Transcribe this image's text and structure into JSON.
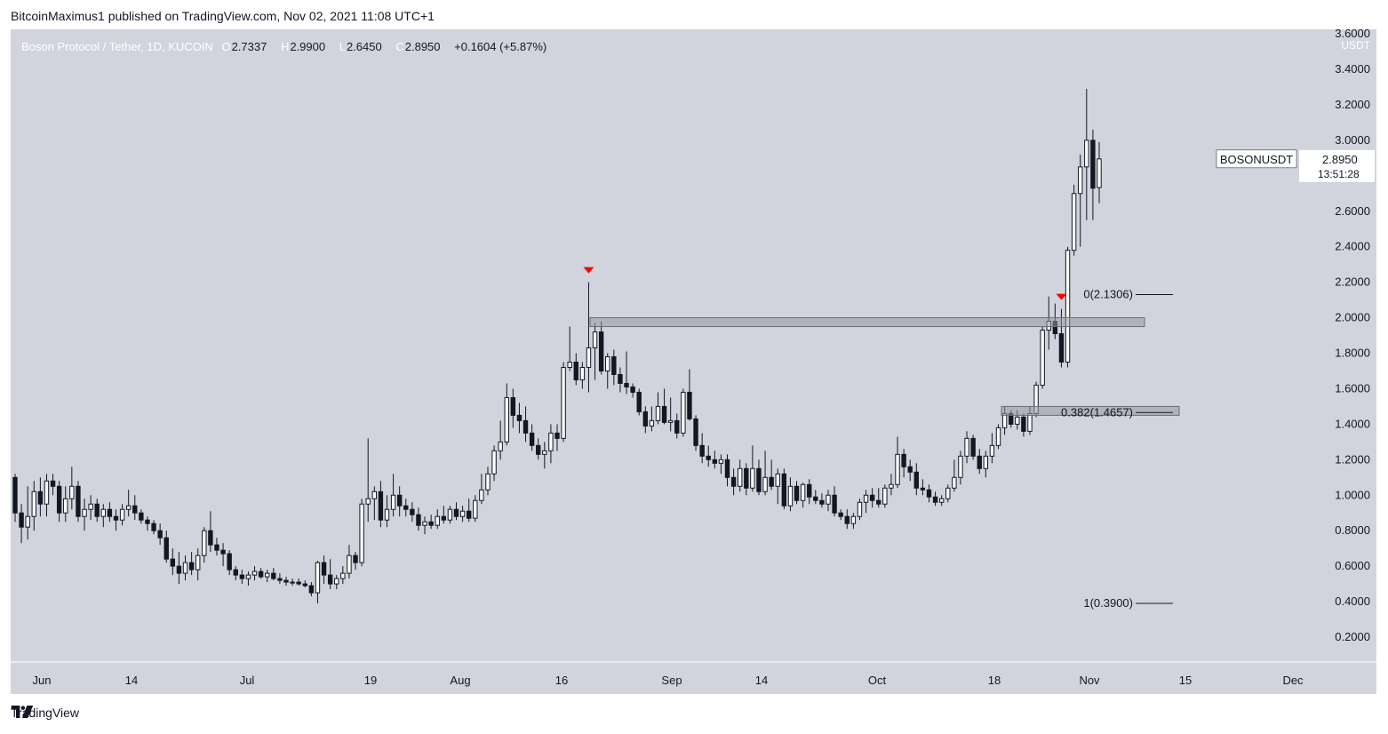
{
  "header": {
    "publisher_line": "BitcoinMaximus1 published on TradingView.com, Nov 02, 2021 11:08 UTC+1"
  },
  "legend": {
    "symbol_line": "Boson Protocol / Tether, 1D, KUCOIN",
    "o_label": "O",
    "o_value": "2.7337",
    "h_label": "H",
    "h_value": "2.9900",
    "l_label": "L",
    "l_value": "2.6450",
    "c_label": "C",
    "c_value": "2.8950",
    "change": "+0.1604 (+5.87%)"
  },
  "price_tag": {
    "symbol": "BOSONUSDT",
    "price": "2.8950",
    "countdown": "13:51:28"
  },
  "footer": {
    "brand": "TradingView"
  },
  "colors": {
    "plot_bg": "#d1d4dc",
    "candle_up": "#ffffff",
    "candle_down": "#131722",
    "marker": "#ff0000",
    "zone_fill": "#9598a1"
  },
  "chart_data": {
    "type": "candlestick",
    "symbol": "BOSONUSDT",
    "exchange": "KUCOIN",
    "timeframe": "1D",
    "y_axis": {
      "unit": "USDT",
      "range": [
        0.1,
        3.6
      ],
      "tick_labels": [
        "3.6000",
        "3.4000",
        "3.2000",
        "3.0000",
        "2.8000",
        "2.6000",
        "2.4000",
        "2.2000",
        "2.0000",
        "1.8000",
        "1.6000",
        "1.4000",
        "1.2000",
        "1.0000",
        "0.8000",
        "0.6000",
        "0.4000",
        "0.2000"
      ]
    },
    "x_axis": {
      "tick_labels": [
        "Jun",
        "14",
        "Jul",
        "19",
        "Aug",
        "16",
        "Sep",
        "14",
        "Oct",
        "18",
        "Nov",
        "15",
        "Dec"
      ]
    },
    "candles": [
      {
        "o": 1.1,
        "h": 1.12,
        "l": 0.85,
        "c": 0.9
      },
      {
        "o": 0.9,
        "h": 0.95,
        "l": 0.73,
        "c": 0.82
      },
      {
        "o": 0.82,
        "h": 1.05,
        "l": 0.75,
        "c": 0.88
      },
      {
        "o": 0.88,
        "h": 1.08,
        "l": 0.8,
        "c": 1.02
      },
      {
        "o": 1.02,
        "h": 1.1,
        "l": 0.88,
        "c": 0.95
      },
      {
        "o": 0.95,
        "h": 1.12,
        "l": 0.88,
        "c": 1.08
      },
      {
        "o": 1.08,
        "h": 1.12,
        "l": 1.0,
        "c": 1.05
      },
      {
        "o": 1.05,
        "h": 1.08,
        "l": 0.85,
        "c": 0.9
      },
      {
        "o": 0.9,
        "h": 1.05,
        "l": 0.85,
        "c": 0.98
      },
      {
        "o": 0.98,
        "h": 1.16,
        "l": 0.92,
        "c": 1.05
      },
      {
        "o": 1.05,
        "h": 1.08,
        "l": 0.85,
        "c": 0.88
      },
      {
        "o": 0.88,
        "h": 0.98,
        "l": 0.8,
        "c": 0.92
      },
      {
        "o": 0.92,
        "h": 1.0,
        "l": 0.86,
        "c": 0.95
      },
      {
        "o": 0.95,
        "h": 0.98,
        "l": 0.85,
        "c": 0.88
      },
      {
        "o": 0.88,
        "h": 0.95,
        "l": 0.82,
        "c": 0.92
      },
      {
        "o": 0.92,
        "h": 0.96,
        "l": 0.85,
        "c": 0.88
      },
      {
        "o": 0.88,
        "h": 0.92,
        "l": 0.8,
        "c": 0.86
      },
      {
        "o": 0.86,
        "h": 0.95,
        "l": 0.83,
        "c": 0.92
      },
      {
        "o": 0.92,
        "h": 1.03,
        "l": 0.88,
        "c": 0.94
      },
      {
        "o": 0.94,
        "h": 1.0,
        "l": 0.86,
        "c": 0.9
      },
      {
        "o": 0.9,
        "h": 0.92,
        "l": 0.84,
        "c": 0.86
      },
      {
        "o": 0.86,
        "h": 0.88,
        "l": 0.8,
        "c": 0.84
      },
      {
        "o": 0.84,
        "h": 0.86,
        "l": 0.78,
        "c": 0.8
      },
      {
        "o": 0.8,
        "h": 0.84,
        "l": 0.72,
        "c": 0.76
      },
      {
        "o": 0.76,
        "h": 0.8,
        "l": 0.62,
        "c": 0.64
      },
      {
        "o": 0.64,
        "h": 0.7,
        "l": 0.55,
        "c": 0.6
      },
      {
        "o": 0.6,
        "h": 0.68,
        "l": 0.5,
        "c": 0.56
      },
      {
        "o": 0.56,
        "h": 0.66,
        "l": 0.52,
        "c": 0.62
      },
      {
        "o": 0.62,
        "h": 0.68,
        "l": 0.55,
        "c": 0.58
      },
      {
        "o": 0.58,
        "h": 0.7,
        "l": 0.52,
        "c": 0.66
      },
      {
        "o": 0.66,
        "h": 0.82,
        "l": 0.62,
        "c": 0.8
      },
      {
        "o": 0.8,
        "h": 0.91,
        "l": 0.68,
        "c": 0.72
      },
      {
        "o": 0.72,
        "h": 0.76,
        "l": 0.66,
        "c": 0.69
      },
      {
        "o": 0.69,
        "h": 0.73,
        "l": 0.6,
        "c": 0.67
      },
      {
        "o": 0.67,
        "h": 0.69,
        "l": 0.55,
        "c": 0.58
      },
      {
        "o": 0.58,
        "h": 0.6,
        "l": 0.52,
        "c": 0.55
      },
      {
        "o": 0.55,
        "h": 0.58,
        "l": 0.5,
        "c": 0.53
      },
      {
        "o": 0.53,
        "h": 0.57,
        "l": 0.49,
        "c": 0.55
      },
      {
        "o": 0.55,
        "h": 0.6,
        "l": 0.52,
        "c": 0.57
      },
      {
        "o": 0.57,
        "h": 0.59,
        "l": 0.53,
        "c": 0.54
      },
      {
        "o": 0.54,
        "h": 0.58,
        "l": 0.51,
        "c": 0.56
      },
      {
        "o": 0.56,
        "h": 0.59,
        "l": 0.52,
        "c": 0.53
      },
      {
        "o": 0.53,
        "h": 0.56,
        "l": 0.5,
        "c": 0.52
      },
      {
        "o": 0.52,
        "h": 0.54,
        "l": 0.49,
        "c": 0.51
      },
      {
        "o": 0.51,
        "h": 0.53,
        "l": 0.49,
        "c": 0.51
      },
      {
        "o": 0.51,
        "h": 0.53,
        "l": 0.49,
        "c": 0.5
      },
      {
        "o": 0.5,
        "h": 0.52,
        "l": 0.48,
        "c": 0.49
      },
      {
        "o": 0.49,
        "h": 0.51,
        "l": 0.43,
        "c": 0.45
      },
      {
        "o": 0.45,
        "h": 0.63,
        "l": 0.39,
        "c": 0.62
      },
      {
        "o": 0.62,
        "h": 0.66,
        "l": 0.5,
        "c": 0.55
      },
      {
        "o": 0.55,
        "h": 0.64,
        "l": 0.47,
        "c": 0.5
      },
      {
        "o": 0.5,
        "h": 0.55,
        "l": 0.47,
        "c": 0.53
      },
      {
        "o": 0.53,
        "h": 0.6,
        "l": 0.5,
        "c": 0.56
      },
      {
        "o": 0.56,
        "h": 0.72,
        "l": 0.53,
        "c": 0.66
      },
      {
        "o": 0.66,
        "h": 0.68,
        "l": 0.58,
        "c": 0.62
      },
      {
        "o": 0.62,
        "h": 0.98,
        "l": 0.6,
        "c": 0.95
      },
      {
        "o": 0.95,
        "h": 1.32,
        "l": 0.85,
        "c": 0.98
      },
      {
        "o": 0.98,
        "h": 1.05,
        "l": 0.86,
        "c": 1.02
      },
      {
        "o": 1.02,
        "h": 1.08,
        "l": 0.82,
        "c": 0.86
      },
      {
        "o": 0.86,
        "h": 1.0,
        "l": 0.82,
        "c": 0.92
      },
      {
        "o": 0.92,
        "h": 1.12,
        "l": 0.88,
        "c": 1.0
      },
      {
        "o": 1.0,
        "h": 1.05,
        "l": 0.88,
        "c": 0.94
      },
      {
        "o": 0.94,
        "h": 0.98,
        "l": 0.88,
        "c": 0.92
      },
      {
        "o": 0.92,
        "h": 0.96,
        "l": 0.85,
        "c": 0.89
      },
      {
        "o": 0.89,
        "h": 0.93,
        "l": 0.8,
        "c": 0.83
      },
      {
        "o": 0.83,
        "h": 0.88,
        "l": 0.78,
        "c": 0.85
      },
      {
        "o": 0.85,
        "h": 0.89,
        "l": 0.81,
        "c": 0.83
      },
      {
        "o": 0.83,
        "h": 0.92,
        "l": 0.81,
        "c": 0.88
      },
      {
        "o": 0.88,
        "h": 0.94,
        "l": 0.84,
        "c": 0.86
      },
      {
        "o": 0.86,
        "h": 0.94,
        "l": 0.84,
        "c": 0.92
      },
      {
        "o": 0.92,
        "h": 0.96,
        "l": 0.86,
        "c": 0.88
      },
      {
        "o": 0.88,
        "h": 0.94,
        "l": 0.85,
        "c": 0.91
      },
      {
        "o": 0.91,
        "h": 0.98,
        "l": 0.85,
        "c": 0.87
      },
      {
        "o": 0.87,
        "h": 1.0,
        "l": 0.85,
        "c": 0.97
      },
      {
        "o": 0.97,
        "h": 1.12,
        "l": 0.95,
        "c": 1.03
      },
      {
        "o": 1.03,
        "h": 1.16,
        "l": 1.0,
        "c": 1.12
      },
      {
        "o": 1.12,
        "h": 1.28,
        "l": 1.08,
        "c": 1.25
      },
      {
        "o": 1.25,
        "h": 1.42,
        "l": 1.2,
        "c": 1.3
      },
      {
        "o": 1.3,
        "h": 1.63,
        "l": 1.28,
        "c": 1.55
      },
      {
        "o": 1.55,
        "h": 1.6,
        "l": 1.38,
        "c": 1.45
      },
      {
        "o": 1.45,
        "h": 1.52,
        "l": 1.35,
        "c": 1.42
      },
      {
        "o": 1.42,
        "h": 1.5,
        "l": 1.3,
        "c": 1.35
      },
      {
        "o": 1.35,
        "h": 1.4,
        "l": 1.25,
        "c": 1.28
      },
      {
        "o": 1.28,
        "h": 1.32,
        "l": 1.2,
        "c": 1.23
      },
      {
        "o": 1.23,
        "h": 1.3,
        "l": 1.15,
        "c": 1.25
      },
      {
        "o": 1.25,
        "h": 1.4,
        "l": 1.18,
        "c": 1.35
      },
      {
        "o": 1.35,
        "h": 1.4,
        "l": 1.25,
        "c": 1.32
      },
      {
        "o": 1.32,
        "h": 1.75,
        "l": 1.3,
        "c": 1.72
      },
      {
        "o": 1.72,
        "h": 1.95,
        "l": 1.7,
        "c": 1.75
      },
      {
        "o": 1.75,
        "h": 1.8,
        "l": 1.62,
        "c": 1.65
      },
      {
        "o": 1.65,
        "h": 1.75,
        "l": 1.6,
        "c": 1.72
      },
      {
        "o": 1.72,
        "h": 2.2,
        "l": 1.58,
        "c": 1.83
      },
      {
        "o": 1.83,
        "h": 1.97,
        "l": 1.65,
        "c": 1.92
      },
      {
        "o": 1.92,
        "h": 1.98,
        "l": 1.68,
        "c": 1.7
      },
      {
        "o": 1.7,
        "h": 1.8,
        "l": 1.6,
        "c": 1.78
      },
      {
        "o": 1.78,
        "h": 1.82,
        "l": 1.62,
        "c": 1.68
      },
      {
        "o": 1.68,
        "h": 1.72,
        "l": 1.58,
        "c": 1.63
      },
      {
        "o": 1.63,
        "h": 1.81,
        "l": 1.57,
        "c": 1.61
      },
      {
        "o": 1.61,
        "h": 1.63,
        "l": 1.55,
        "c": 1.58
      },
      {
        "o": 1.58,
        "h": 1.6,
        "l": 1.45,
        "c": 1.47
      },
      {
        "o": 1.47,
        "h": 1.5,
        "l": 1.35,
        "c": 1.39
      },
      {
        "o": 1.39,
        "h": 1.5,
        "l": 1.36,
        "c": 1.42
      },
      {
        "o": 1.42,
        "h": 1.58,
        "l": 1.4,
        "c": 1.5
      },
      {
        "o": 1.5,
        "h": 1.6,
        "l": 1.4,
        "c": 1.41
      },
      {
        "o": 1.41,
        "h": 1.55,
        "l": 1.36,
        "c": 1.42
      },
      {
        "o": 1.42,
        "h": 1.46,
        "l": 1.32,
        "c": 1.35
      },
      {
        "o": 1.35,
        "h": 1.6,
        "l": 1.33,
        "c": 1.58
      },
      {
        "o": 1.58,
        "h": 1.71,
        "l": 1.42,
        "c": 1.43
      },
      {
        "o": 1.43,
        "h": 1.45,
        "l": 1.25,
        "c": 1.28
      },
      {
        "o": 1.28,
        "h": 1.35,
        "l": 1.18,
        "c": 1.22
      },
      {
        "o": 1.22,
        "h": 1.28,
        "l": 1.16,
        "c": 1.2
      },
      {
        "o": 1.2,
        "h": 1.25,
        "l": 1.15,
        "c": 1.18
      },
      {
        "o": 1.18,
        "h": 1.23,
        "l": 1.12,
        "c": 1.2
      },
      {
        "o": 1.2,
        "h": 1.23,
        "l": 1.05,
        "c": 1.1
      },
      {
        "o": 1.1,
        "h": 1.15,
        "l": 1.0,
        "c": 1.05
      },
      {
        "o": 1.05,
        "h": 1.2,
        "l": 1.02,
        "c": 1.15
      },
      {
        "o": 1.15,
        "h": 1.18,
        "l": 1.0,
        "c": 1.04
      },
      {
        "o": 1.04,
        "h": 1.28,
        "l": 1.02,
        "c": 1.15
      },
      {
        "o": 1.15,
        "h": 1.2,
        "l": 1.0,
        "c": 1.02
      },
      {
        "o": 1.02,
        "h": 1.25,
        "l": 1.0,
        "c": 1.1
      },
      {
        "o": 1.1,
        "h": 1.2,
        "l": 1.03,
        "c": 1.05
      },
      {
        "o": 1.05,
        "h": 1.15,
        "l": 0.95,
        "c": 1.12
      },
      {
        "o": 1.12,
        "h": 1.15,
        "l": 0.92,
        "c": 0.94
      },
      {
        "o": 0.94,
        "h": 1.1,
        "l": 0.91,
        "c": 1.05
      },
      {
        "o": 1.05,
        "h": 1.08,
        "l": 0.95,
        "c": 0.97
      },
      {
        "o": 0.97,
        "h": 1.07,
        "l": 0.93,
        "c": 1.06
      },
      {
        "o": 1.06,
        "h": 1.09,
        "l": 0.95,
        "c": 0.99
      },
      {
        "o": 0.99,
        "h": 1.03,
        "l": 0.95,
        "c": 0.97
      },
      {
        "o": 0.97,
        "h": 1.01,
        "l": 0.93,
        "c": 0.95
      },
      {
        "o": 0.95,
        "h": 1.03,
        "l": 0.91,
        "c": 1.0
      },
      {
        "o": 1.0,
        "h": 1.05,
        "l": 0.88,
        "c": 0.9
      },
      {
        "o": 0.9,
        "h": 0.92,
        "l": 0.86,
        "c": 0.88
      },
      {
        "o": 0.88,
        "h": 0.92,
        "l": 0.81,
        "c": 0.84
      },
      {
        "o": 0.84,
        "h": 0.9,
        "l": 0.81,
        "c": 0.88
      },
      {
        "o": 0.88,
        "h": 0.98,
        "l": 0.86,
        "c": 0.96
      },
      {
        "o": 0.96,
        "h": 1.03,
        "l": 0.9,
        "c": 1.0
      },
      {
        "o": 1.0,
        "h": 1.04,
        "l": 0.93,
        "c": 0.97
      },
      {
        "o": 0.97,
        "h": 1.04,
        "l": 0.93,
        "c": 0.95
      },
      {
        "o": 0.95,
        "h": 1.06,
        "l": 0.93,
        "c": 1.04
      },
      {
        "o": 1.04,
        "h": 1.12,
        "l": 1.0,
        "c": 1.06
      },
      {
        "o": 1.06,
        "h": 1.33,
        "l": 1.04,
        "c": 1.23
      },
      {
        "o": 1.23,
        "h": 1.26,
        "l": 1.1,
        "c": 1.16
      },
      {
        "o": 1.16,
        "h": 1.2,
        "l": 1.08,
        "c": 1.13
      },
      {
        "o": 1.13,
        "h": 1.18,
        "l": 1.0,
        "c": 1.04
      },
      {
        "o": 1.04,
        "h": 1.09,
        "l": 1.0,
        "c": 1.03
      },
      {
        "o": 1.03,
        "h": 1.06,
        "l": 0.96,
        "c": 0.99
      },
      {
        "o": 0.99,
        "h": 1.02,
        "l": 0.94,
        "c": 0.96
      },
      {
        "o": 0.96,
        "h": 1.0,
        "l": 0.94,
        "c": 0.98
      },
      {
        "o": 0.98,
        "h": 1.06,
        "l": 0.96,
        "c": 1.04
      },
      {
        "o": 1.04,
        "h": 1.2,
        "l": 1.02,
        "c": 1.1
      },
      {
        "o": 1.1,
        "h": 1.25,
        "l": 1.06,
        "c": 1.22
      },
      {
        "o": 1.22,
        "h": 1.36,
        "l": 1.18,
        "c": 1.32
      },
      {
        "o": 1.32,
        "h": 1.34,
        "l": 1.2,
        "c": 1.22
      },
      {
        "o": 1.22,
        "h": 1.26,
        "l": 1.12,
        "c": 1.15
      },
      {
        "o": 1.15,
        "h": 1.25,
        "l": 1.1,
        "c": 1.22
      },
      {
        "o": 1.22,
        "h": 1.35,
        "l": 1.18,
        "c": 1.28
      },
      {
        "o": 1.28,
        "h": 1.4,
        "l": 1.26,
        "c": 1.38
      },
      {
        "o": 1.38,
        "h": 1.5,
        "l": 1.34,
        "c": 1.46
      },
      {
        "o": 1.46,
        "h": 1.48,
        "l": 1.38,
        "c": 1.4
      },
      {
        "o": 1.4,
        "h": 1.48,
        "l": 1.37,
        "c": 1.44
      },
      {
        "o": 1.44,
        "h": 1.46,
        "l": 1.33,
        "c": 1.36
      },
      {
        "o": 1.36,
        "h": 1.5,
        "l": 1.34,
        "c": 1.46
      },
      {
        "o": 1.46,
        "h": 1.64,
        "l": 1.44,
        "c": 1.62
      },
      {
        "o": 1.62,
        "h": 1.95,
        "l": 1.6,
        "c": 1.93
      },
      {
        "o": 1.93,
        "h": 2.12,
        "l": 1.82,
        "c": 1.98
      },
      {
        "o": 1.98,
        "h": 2.08,
        "l": 1.88,
        "c": 1.91
      },
      {
        "o": 1.91,
        "h": 2.05,
        "l": 1.72,
        "c": 1.75
      },
      {
        "o": 1.75,
        "h": 2.4,
        "l": 1.72,
        "c": 2.38
      },
      {
        "o": 2.38,
        "h": 2.75,
        "l": 2.35,
        "c": 2.7
      },
      {
        "o": 2.7,
        "h": 2.92,
        "l": 2.4,
        "c": 2.85
      },
      {
        "o": 2.85,
        "h": 3.29,
        "l": 2.55,
        "c": 3.0
      },
      {
        "o": 3.0,
        "h": 3.06,
        "l": 2.55,
        "c": 2.73
      },
      {
        "o": 2.7337,
        "h": 2.99,
        "l": 2.645,
        "c": 2.895
      }
    ],
    "horizontal_zones": [
      {
        "top": 2.0,
        "bottom": 1.95
      },
      {
        "top": 1.5,
        "bottom": 1.45
      }
    ],
    "fib_levels": [
      {
        "label": "0(2.1306)",
        "value": 2.1306
      },
      {
        "label": "0.382(1.4657)",
        "value": 1.4657
      },
      {
        "label": "1(0.3900)",
        "value": 0.39
      }
    ],
    "markers": [
      {
        "type": "down-triangle",
        "candle_index": 91
      },
      {
        "type": "down-triangle",
        "candle_index": 166
      }
    ],
    "grid": false,
    "legend": "top-left"
  }
}
